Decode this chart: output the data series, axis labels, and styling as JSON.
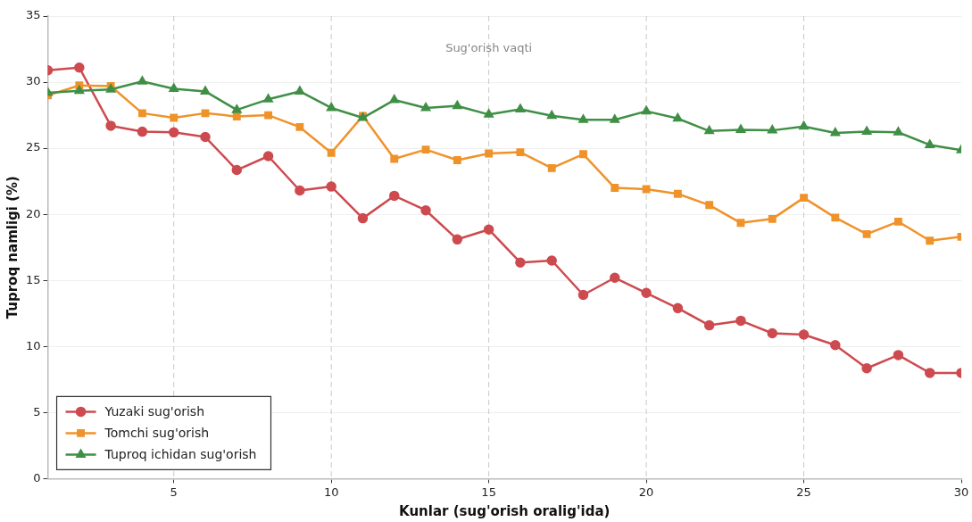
{
  "chart_data": {
    "type": "line",
    "xlabel": "Kunlar (sug'orish oralig'ida)",
    "ylabel": "Tuproq namligi (%)",
    "x": [
      1,
      2,
      3,
      4,
      5,
      6,
      7,
      8,
      9,
      10,
      11,
      12,
      13,
      14,
      15,
      16,
      17,
      18,
      19,
      20,
      21,
      22,
      23,
      24,
      25,
      26,
      27,
      28,
      29,
      30
    ],
    "series": [
      {
        "name": "Yuzaki sug'orish",
        "color": "#cd4a4f",
        "marker": "circle",
        "values": [
          30.9,
          31.1,
          26.7,
          26.25,
          26.2,
          25.85,
          23.35,
          24.4,
          21.8,
          22.1,
          19.7,
          21.4,
          20.3,
          18.1,
          18.85,
          16.35,
          16.5,
          13.9,
          15.2,
          14.05,
          12.9,
          11.6,
          11.95,
          11.0,
          10.9,
          10.1,
          8.35,
          9.35,
          8.0,
          8.0
        ]
      },
      {
        "name": "Tomchi sug'orish",
        "color": "#f0922a",
        "marker": "square",
        "values": [
          29.0,
          29.75,
          29.7,
          27.65,
          27.3,
          27.65,
          27.4,
          27.5,
          26.6,
          24.65,
          27.45,
          24.2,
          24.9,
          24.1,
          24.6,
          24.7,
          23.5,
          24.55,
          22.0,
          21.9,
          21.55,
          20.7,
          19.35,
          19.65,
          21.25,
          19.75,
          18.5,
          19.45,
          18.0,
          18.3
        ]
      },
      {
        "name": "Tuproq ichidan sug'orish",
        "color": "#3f8f46",
        "marker": "triangle",
        "values": [
          29.2,
          29.35,
          29.45,
          30.05,
          29.5,
          29.3,
          27.9,
          28.7,
          29.3,
          28.05,
          27.3,
          28.65,
          28.05,
          28.2,
          27.55,
          27.95,
          27.45,
          27.15,
          27.15,
          27.8,
          27.25,
          26.3,
          26.4,
          26.35,
          26.65,
          26.15,
          26.25,
          26.2,
          25.25,
          24.85
        ]
      }
    ],
    "xlim": [
      1,
      30
    ],
    "xticks": [
      5,
      10,
      15,
      20,
      25,
      30
    ],
    "ylim": [
      0,
      35
    ],
    "yticks": [
      0,
      5,
      10,
      15,
      20,
      25,
      30,
      35
    ],
    "grid": "y",
    "legend": "bottom left",
    "line_style": "solid",
    "ref_lines": [
      {
        "axis": "x",
        "value": 5,
        "color": "#c8c8c8",
        "line_style": "dashed"
      },
      {
        "axis": "x",
        "value": 10,
        "color": "#c8c8c8",
        "line_style": "dashed"
      },
      {
        "axis": "x",
        "value": 15,
        "color": "#c8c8c8",
        "line_style": "dashed"
      },
      {
        "axis": "x",
        "value": 20,
        "color": "#c8c8c8",
        "line_style": "dashed"
      },
      {
        "axis": "x",
        "value": 25,
        "color": "#c8c8c8",
        "line_style": "dashed"
      }
    ],
    "annotations": [
      {
        "text": "Sug'orish vaqti",
        "x": 15,
        "y": 32.5
      }
    ]
  }
}
